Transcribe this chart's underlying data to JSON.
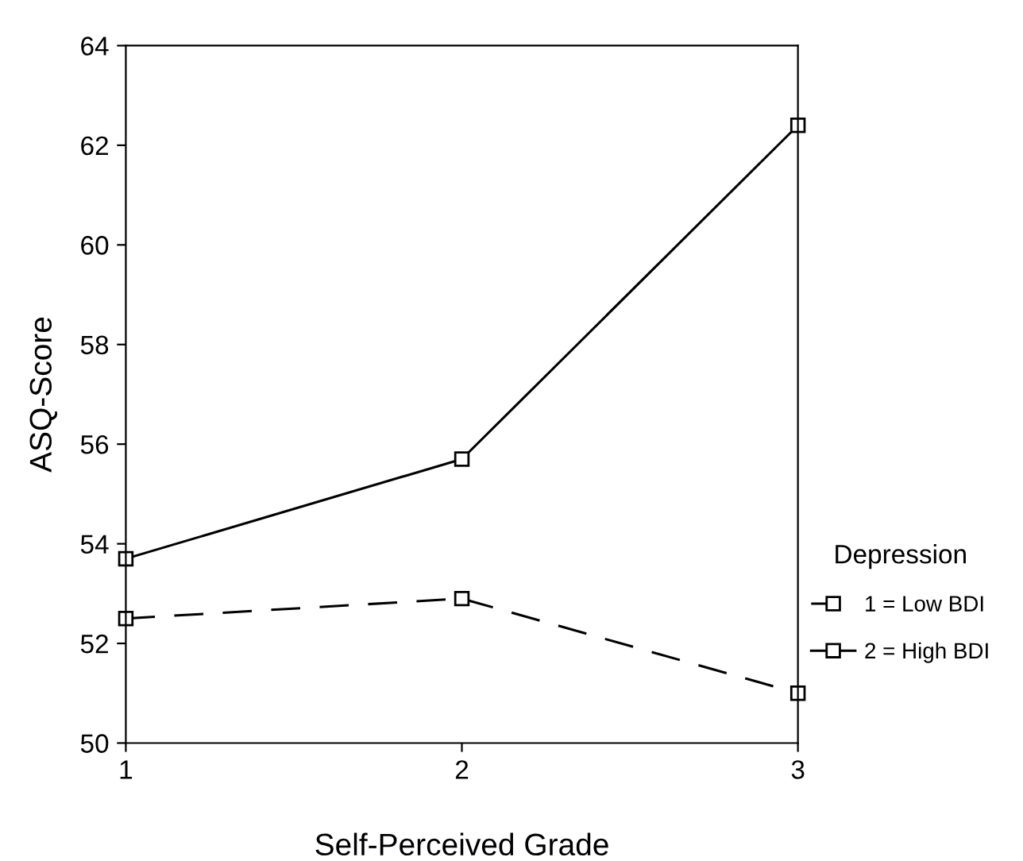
{
  "chart_data": {
    "type": "line",
    "xlabel": "Self-Perceived Grade",
    "ylabel": "ASQ-Score",
    "legend_title": "Depression",
    "x": [
      1,
      2,
      3
    ],
    "series": [
      {
        "name": "1 = Low BDI",
        "color": "#000000",
        "values": [
          52.5,
          52.9,
          51.0
        ],
        "line_style": "dashed"
      },
      {
        "name": "2 = High BDI",
        "color": "#000000",
        "values": [
          53.7,
          55.7,
          62.4
        ],
        "line_style": "solid"
      }
    ],
    "xlim": [
      1,
      3
    ],
    "xticks": [
      1,
      2,
      3
    ],
    "ylim": [
      50,
      64
    ],
    "yticks": [
      50,
      52,
      54,
      56,
      58,
      60,
      62,
      64
    ],
    "grid": false,
    "legend": "right",
    "marker": "square"
  }
}
